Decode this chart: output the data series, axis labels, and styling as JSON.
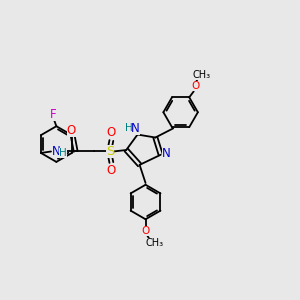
{
  "background_color": "#e8e8e8",
  "bond_color": "#000000",
  "atom_colors": {
    "N": "#0000cc",
    "O": "#ff0000",
    "F": "#cc00cc",
    "S": "#cccc00",
    "H": "#008080",
    "C": "#000000"
  },
  "figsize": [
    3.0,
    3.0
  ],
  "dpi": 100
}
